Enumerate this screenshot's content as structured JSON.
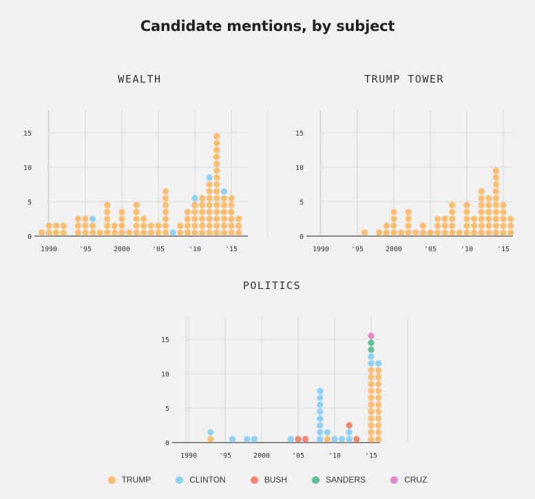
{
  "title": "Candidate mentions, by subject",
  "colors": {
    "TRUMP": "#fdbe72",
    "CLINTON": "#8fd2f5",
    "BUSH": "#f58670",
    "SANDERS": "#63bd96",
    "CRUZ": "#e08ccc"
  },
  "legend": [
    {
      "key": "TRUMP",
      "label": "TRUMP"
    },
    {
      "key": "CLINTON",
      "label": "CLINTON"
    },
    {
      "key": "BUSH",
      "label": "BUSH"
    },
    {
      "key": "SANDERS",
      "label": "SANDERS"
    },
    {
      "key": "CRUZ",
      "label": "CRUZ"
    }
  ],
  "chart_data": [
    {
      "type": "bar",
      "subtype": "stacked dot histogram",
      "title": "WEALTH",
      "x_tick_labels": [
        "1990",
        "'95",
        "2000",
        "'05",
        "'10",
        "'15"
      ],
      "x_ticks": [
        1990,
        1995,
        2000,
        2005,
        2010,
        2015
      ],
      "y_ticks": [
        0,
        5,
        10,
        15
      ],
      "ylim": [
        0,
        18
      ],
      "xlim": [
        1989,
        2017
      ],
      "grid": true,
      "series": [
        {
          "name": "TRUMP",
          "x": [
            1989,
            1990,
            1991,
            1992,
            1994,
            1995,
            1996,
            1997,
            1998,
            1999,
            2000,
            2001,
            2002,
            2003,
            2004,
            2005,
            2006,
            2008,
            2009,
            2010,
            2011,
            2012,
            2013,
            2014,
            2015,
            2016
          ],
          "values": [
            1,
            2,
            2,
            2,
            3,
            3,
            2,
            1,
            5,
            2,
            4,
            1,
            5,
            3,
            2,
            2,
            7,
            2,
            4,
            5,
            6,
            8,
            15,
            6,
            6,
            3
          ]
        },
        {
          "name": "CLINTON",
          "x": [
            1996,
            2007,
            2010,
            2012,
            2014
          ],
          "values": [
            1,
            1,
            1,
            1,
            1
          ]
        }
      ]
    },
    {
      "type": "bar",
      "subtype": "stacked dot histogram",
      "title": "TRUMP TOWER",
      "x_tick_labels": [
        "1990",
        "'95",
        "2000",
        "'05",
        "'10",
        "'15"
      ],
      "x_ticks": [
        1990,
        1995,
        2000,
        2005,
        2010,
        2015
      ],
      "y_ticks": [
        0,
        5,
        10,
        15
      ],
      "ylim": [
        0,
        18
      ],
      "xlim": [
        1989,
        2017
      ],
      "grid": true,
      "series": [
        {
          "name": "TRUMP",
          "x": [
            1996,
            1998,
            1999,
            2000,
            2001,
            2002,
            2003,
            2004,
            2005,
            2006,
            2007,
            2008,
            2009,
            2010,
            2011,
            2012,
            2013,
            2014,
            2015,
            2016
          ],
          "values": [
            1,
            1,
            2,
            4,
            1,
            4,
            1,
            2,
            1,
            3,
            3,
            5,
            1,
            5,
            3,
            7,
            6,
            10,
            5,
            3
          ]
        }
      ]
    },
    {
      "type": "bar",
      "subtype": "stacked dot histogram",
      "title": "POLITICS",
      "x_tick_labels": [
        "1990",
        "'95",
        "2000",
        "'05",
        "'10",
        "'15"
      ],
      "x_ticks": [
        1990,
        1995,
        2000,
        2005,
        2010,
        2015
      ],
      "y_ticks": [
        0,
        5,
        10,
        15
      ],
      "ylim": [
        0,
        18
      ],
      "xlim": [
        1989,
        2017
      ],
      "grid": true,
      "series": [
        {
          "name": "TRUMP",
          "x": [
            1993,
            2009,
            2015,
            2016
          ],
          "values": [
            1,
            1,
            11,
            11
          ]
        },
        {
          "name": "CLINTON",
          "x": [
            1993,
            1996,
            1998,
            1999,
            2004,
            2008,
            2009,
            2010,
            2011,
            2012,
            2015,
            2016
          ],
          "values": [
            1,
            1,
            1,
            1,
            1,
            8,
            1,
            1,
            1,
            2,
            2,
            1
          ]
        },
        {
          "name": "BUSH",
          "x": [
            2005,
            2006,
            2012,
            2013
          ],
          "values": [
            1,
            1,
            1,
            1
          ]
        },
        {
          "name": "SANDERS",
          "x": [
            2015
          ],
          "values": [
            2
          ]
        },
        {
          "name": "CRUZ",
          "x": [
            2015
          ],
          "values": [
            1
          ]
        }
      ]
    }
  ]
}
